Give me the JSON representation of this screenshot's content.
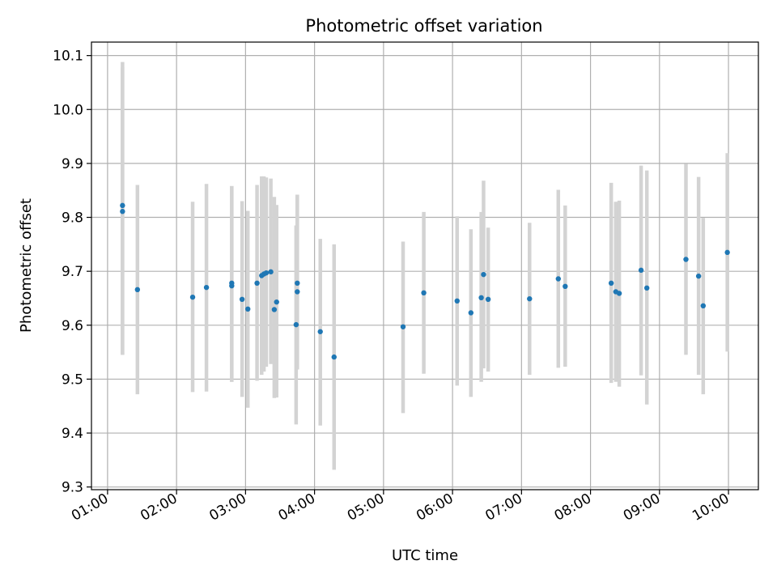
{
  "chart_data": {
    "type": "scatter",
    "title": "Photometric offset variation",
    "xlabel": "UTC time",
    "ylabel": "Photometric offset",
    "xlim": [
      "00:46",
      "10:26"
    ],
    "ylim": [
      9.295,
      10.125
    ],
    "grid": true,
    "x_tick_labels": [
      "01:00",
      "02:00",
      "03:00",
      "04:00",
      "05:00",
      "06:00",
      "07:00",
      "08:00",
      "09:00",
      "10:00"
    ],
    "y_tick_labels": [
      "9.3",
      "9.4",
      "9.5",
      "9.6",
      "9.7",
      "9.8",
      "9.9",
      "10.0",
      "10.1"
    ],
    "series": [
      {
        "marker_color": "#1f77b4",
        "errorbar_color": "#d3d3d3",
        "points": [
          {
            "x": "01:13",
            "y": 9.822,
            "ylow": 9.545,
            "yhigh": 10.088
          },
          {
            "x": "01:13",
            "y": 9.811,
            "ylow": 9.545,
            "yhigh": 10.078
          },
          {
            "x": "01:26",
            "y": 9.666,
            "ylow": 9.472,
            "yhigh": 9.86
          },
          {
            "x": "02:14",
            "y": 9.652,
            "ylow": 9.476,
            "yhigh": 9.829
          },
          {
            "x": "02:26",
            "y": 9.67,
            "ylow": 9.477,
            "yhigh": 9.862
          },
          {
            "x": "02:48",
            "y": 9.673,
            "ylow": 9.495,
            "yhigh": 9.858
          },
          {
            "x": "02:48",
            "y": 9.678,
            "ylow": 9.495,
            "yhigh": 9.858
          },
          {
            "x": "02:57",
            "y": 9.648,
            "ylow": 9.467,
            "yhigh": 9.83
          },
          {
            "x": "03:02",
            "y": 9.63,
            "ylow": 9.447,
            "yhigh": 9.812
          },
          {
            "x": "03:10",
            "y": 9.678,
            "ylow": 9.497,
            "yhigh": 9.86
          },
          {
            "x": "03:14",
            "y": 9.692,
            "ylow": 9.508,
            "yhigh": 9.876
          },
          {
            "x": "03:16",
            "y": 9.695,
            "ylow": 9.514,
            "yhigh": 9.876
          },
          {
            "x": "03:18",
            "y": 9.697,
            "ylow": 9.523,
            "yhigh": 9.874
          },
          {
            "x": "03:22",
            "y": 9.699,
            "ylow": 9.528,
            "yhigh": 9.872
          },
          {
            "x": "03:25",
            "y": 9.629,
            "ylow": 9.465,
            "yhigh": 9.838
          },
          {
            "x": "03:27",
            "y": 9.643,
            "ylow": 9.466,
            "yhigh": 9.823
          },
          {
            "x": "03:44",
            "y": 9.601,
            "ylow": 9.416,
            "yhigh": 9.785
          },
          {
            "x": "03:45",
            "y": 9.662,
            "ylow": 9.518,
            "yhigh": 9.842
          },
          {
            "x": "03:45",
            "y": 9.678,
            "ylow": 9.518,
            "yhigh": 9.842
          },
          {
            "x": "04:05",
            "y": 9.588,
            "ylow": 9.414,
            "yhigh": 9.76
          },
          {
            "x": "04:17",
            "y": 9.541,
            "ylow": 9.332,
            "yhigh": 9.75
          },
          {
            "x": "05:17",
            "y": 9.597,
            "ylow": 9.437,
            "yhigh": 9.755
          },
          {
            "x": "05:35",
            "y": 9.66,
            "ylow": 9.51,
            "yhigh": 9.81
          },
          {
            "x": "06:04",
            "y": 9.645,
            "ylow": 9.488,
            "yhigh": 9.802
          },
          {
            "x": "06:16",
            "y": 9.623,
            "ylow": 9.467,
            "yhigh": 9.778
          },
          {
            "x": "06:25",
            "y": 9.651,
            "ylow": 9.495,
            "yhigh": 9.81
          },
          {
            "x": "06:27",
            "y": 9.694,
            "ylow": 9.52,
            "yhigh": 9.868
          },
          {
            "x": "06:31",
            "y": 9.648,
            "ylow": 9.514,
            "yhigh": 9.781
          },
          {
            "x": "07:07",
            "y": 9.649,
            "ylow": 9.508,
            "yhigh": 9.79
          },
          {
            "x": "07:32",
            "y": 9.686,
            "ylow": 9.521,
            "yhigh": 9.851
          },
          {
            "x": "07:38",
            "y": 9.672,
            "ylow": 9.523,
            "yhigh": 9.822
          },
          {
            "x": "08:18",
            "y": 9.678,
            "ylow": 9.493,
            "yhigh": 9.864
          },
          {
            "x": "08:22",
            "y": 9.662,
            "ylow": 9.495,
            "yhigh": 9.829
          },
          {
            "x": "08:25",
            "y": 9.659,
            "ylow": 9.486,
            "yhigh": 9.831
          },
          {
            "x": "08:44",
            "y": 9.702,
            "ylow": 9.507,
            "yhigh": 9.896
          },
          {
            "x": "08:49",
            "y": 9.669,
            "ylow": 9.453,
            "yhigh": 9.887
          },
          {
            "x": "09:23",
            "y": 9.722,
            "ylow": 9.545,
            "yhigh": 9.899
          },
          {
            "x": "09:34",
            "y": 9.691,
            "ylow": 9.508,
            "yhigh": 9.875
          },
          {
            "x": "09:38",
            "y": 9.636,
            "ylow": 9.472,
            "yhigh": 9.799
          },
          {
            "x": "09:59",
            "y": 9.735,
            "ylow": 9.551,
            "yhigh": 9.919
          }
        ]
      }
    ]
  }
}
